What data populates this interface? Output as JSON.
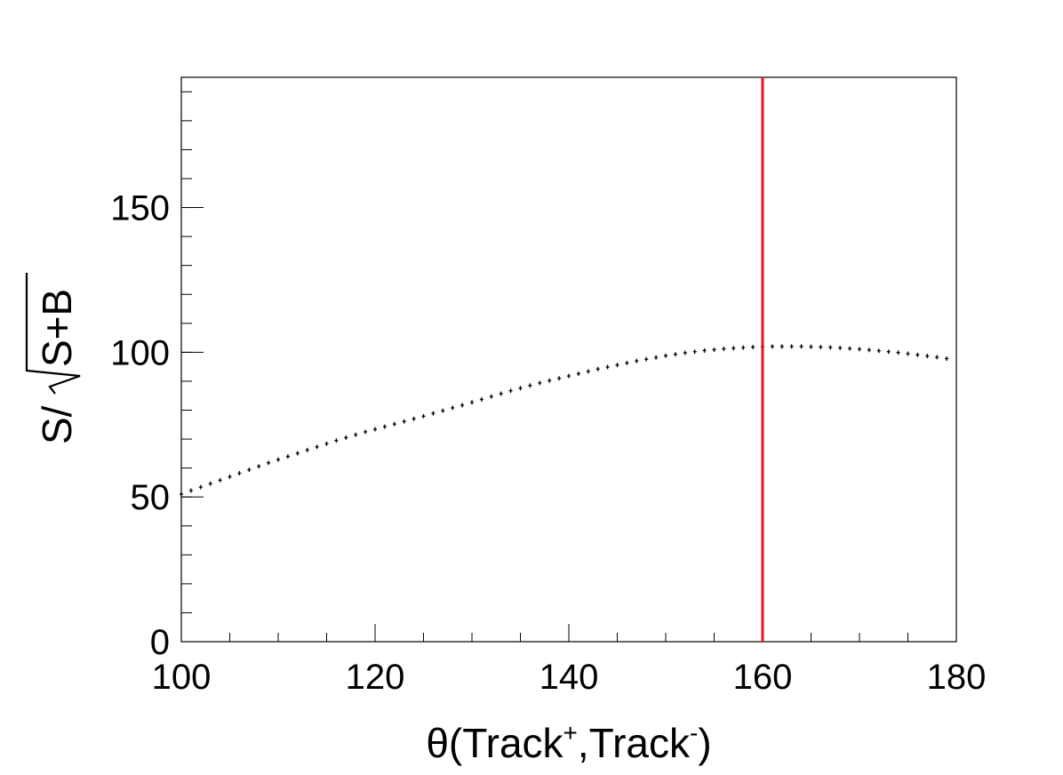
{
  "chart_data": {
    "type": "scatter",
    "xlabel": {
      "prefix": "θ(Track",
      "sup_plus": "+",
      "middle": ",Track",
      "sup_minus": "-",
      "suffix": ")"
    },
    "ylabel": {
      "prefix": "S/",
      "radicand": "S+B"
    },
    "xlim": [
      100,
      180
    ],
    "ylim": [
      0,
      195
    ],
    "xticks": [
      {
        "value": 100,
        "label": "100"
      },
      {
        "value": 120,
        "label": "120"
      },
      {
        "value": 140,
        "label": "140"
      },
      {
        "value": 160,
        "label": "160"
      },
      {
        "value": 180,
        "label": "180"
      }
    ],
    "yticks": [
      {
        "value": 0,
        "label": "0"
      },
      {
        "value": 50,
        "label": "50"
      },
      {
        "value": 100,
        "label": "100"
      },
      {
        "value": 150,
        "label": "150"
      }
    ],
    "x_minor_step": 5,
    "y_minor_step": 10,
    "cut_line": {
      "x": 160,
      "color": "#e8161c"
    },
    "series": [
      {
        "color": "#000000",
        "x": [
          100,
          101,
          102,
          103,
          104,
          105,
          106,
          107,
          108,
          109,
          110,
          111,
          112,
          113,
          114,
          115,
          116,
          117,
          118,
          119,
          120,
          121,
          122,
          123,
          124,
          125,
          126,
          127,
          128,
          129,
          130,
          131,
          132,
          133,
          134,
          135,
          136,
          137,
          138,
          139,
          140,
          141,
          142,
          143,
          144,
          145,
          146,
          147,
          148,
          149,
          150,
          151,
          152,
          153,
          154,
          155,
          156,
          157,
          158,
          159,
          160,
          161,
          162,
          163,
          164,
          165,
          166,
          167,
          168,
          169,
          170,
          171,
          172,
          173,
          174,
          175,
          176,
          177,
          178,
          179
        ],
        "y": [
          51.0,
          52.2,
          53.4,
          54.6,
          55.8,
          57.0,
          58.2,
          59.4,
          60.6,
          61.8,
          62.9,
          64.0,
          65.1,
          66.2,
          67.3,
          68.4,
          69.5,
          70.5,
          71.5,
          72.5,
          73.4,
          74.3,
          75.2,
          76.1,
          77.0,
          77.9,
          78.9,
          79.8,
          80.8,
          81.7,
          82.7,
          83.7,
          84.7,
          85.7,
          86.7,
          87.6,
          88.5,
          89.4,
          90.2,
          91.0,
          91.8,
          92.6,
          93.4,
          94.2,
          94.9,
          95.6,
          96.3,
          97.0,
          97.6,
          98.2,
          98.8,
          99.3,
          99.8,
          100.2,
          100.6,
          100.9,
          101.2,
          101.4,
          101.6,
          101.8,
          101.9,
          102.0,
          102.0,
          102.0,
          102.0,
          101.9,
          101.8,
          101.7,
          101.5,
          101.3,
          101.1,
          100.8,
          100.5,
          100.2,
          99.9,
          99.5,
          99.1,
          98.7,
          98.3,
          97.8
        ]
      }
    ]
  }
}
